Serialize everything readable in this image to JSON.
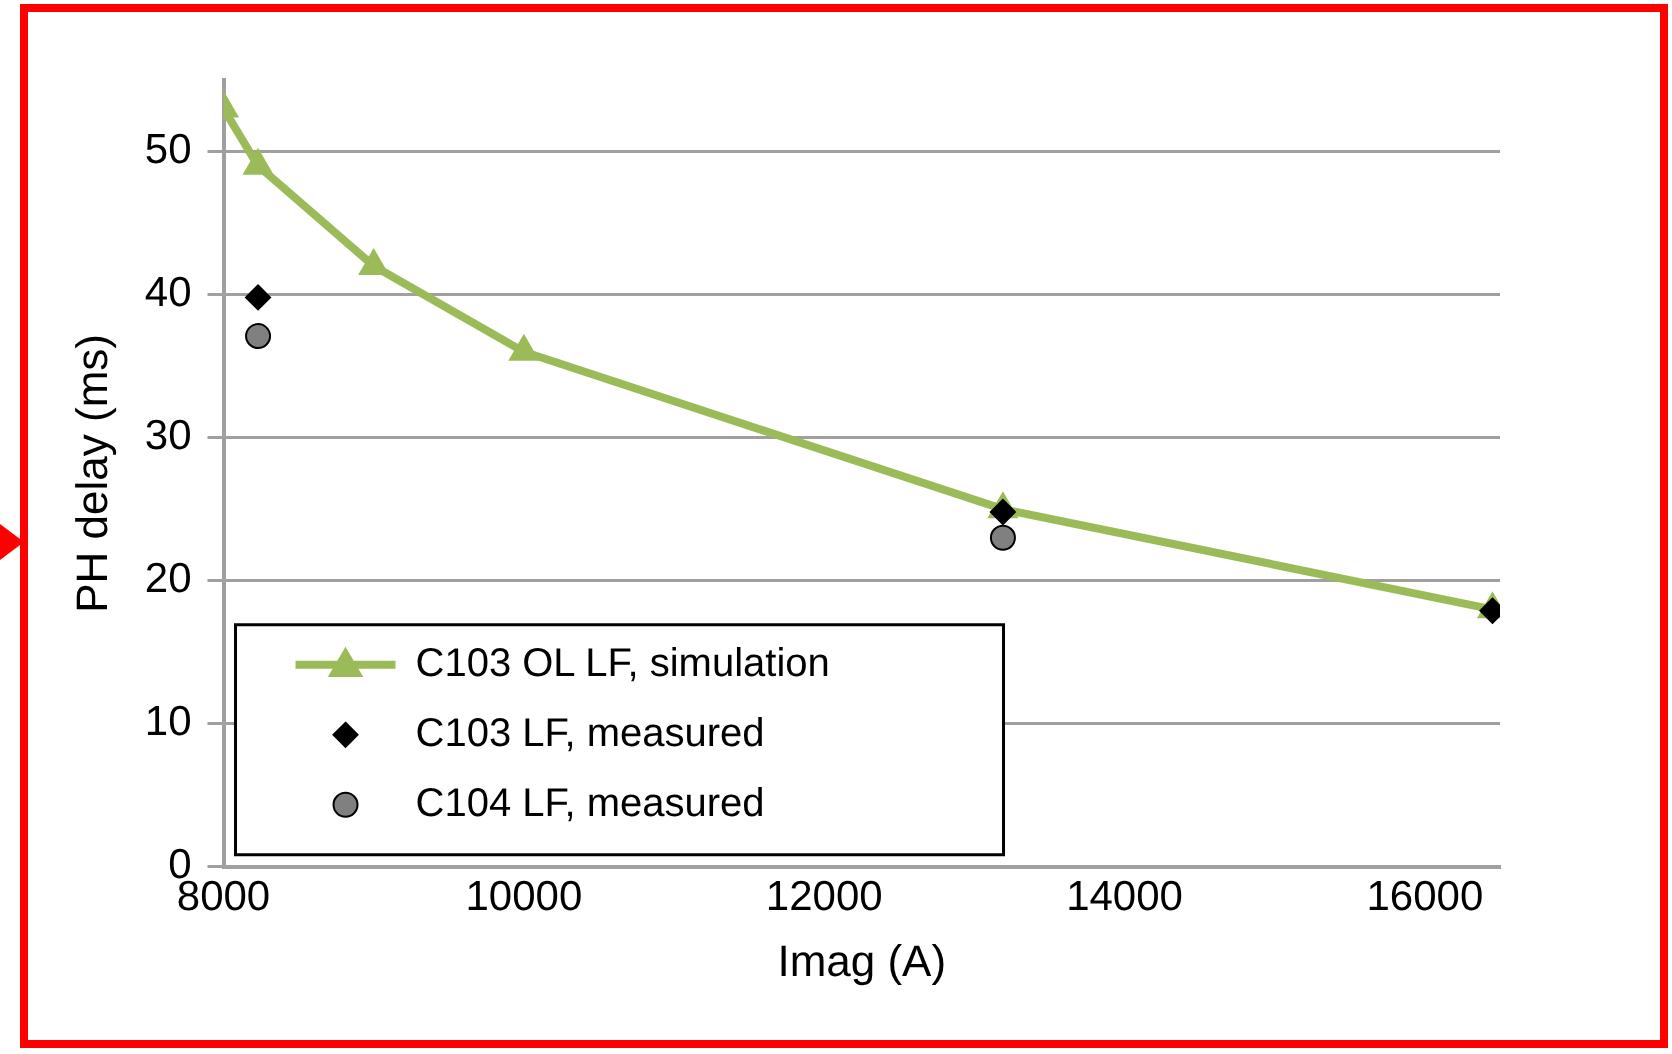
{
  "chart_data": {
    "type": "line",
    "xlabel": "Imag (A)",
    "ylabel": "PH delay (ms)",
    "xlim": [
      8000,
      16500
    ],
    "xticks": [
      8000,
      10000,
      12000,
      14000,
      16000
    ],
    "ylim": [
      0,
      55
    ],
    "yticks": [
      0,
      10,
      20,
      30,
      40,
      50
    ],
    "grid": "y",
    "legend": "bottom left",
    "series": [
      {
        "name": "C103 OL LF, simulation",
        "color": "#9bbb59",
        "marker": "triangle",
        "x": [
          8000,
          8230,
          9000,
          10000,
          13190,
          16450
        ],
        "values": [
          53,
          49,
          42,
          36,
          25,
          18
        ]
      },
      {
        "name": "C103 LF, measured",
        "type": "scatter",
        "color": "#000000",
        "marker": "diamond",
        "x": [
          8230,
          13190,
          16450
        ],
        "values": [
          39.8,
          24.8,
          17.9
        ]
      },
      {
        "name": "C104 LF, measured",
        "type": "scatter",
        "color": "#808080",
        "marker": "circle",
        "x": [
          8230,
          13190
        ],
        "values": [
          37.1,
          23.0
        ]
      }
    ]
  }
}
